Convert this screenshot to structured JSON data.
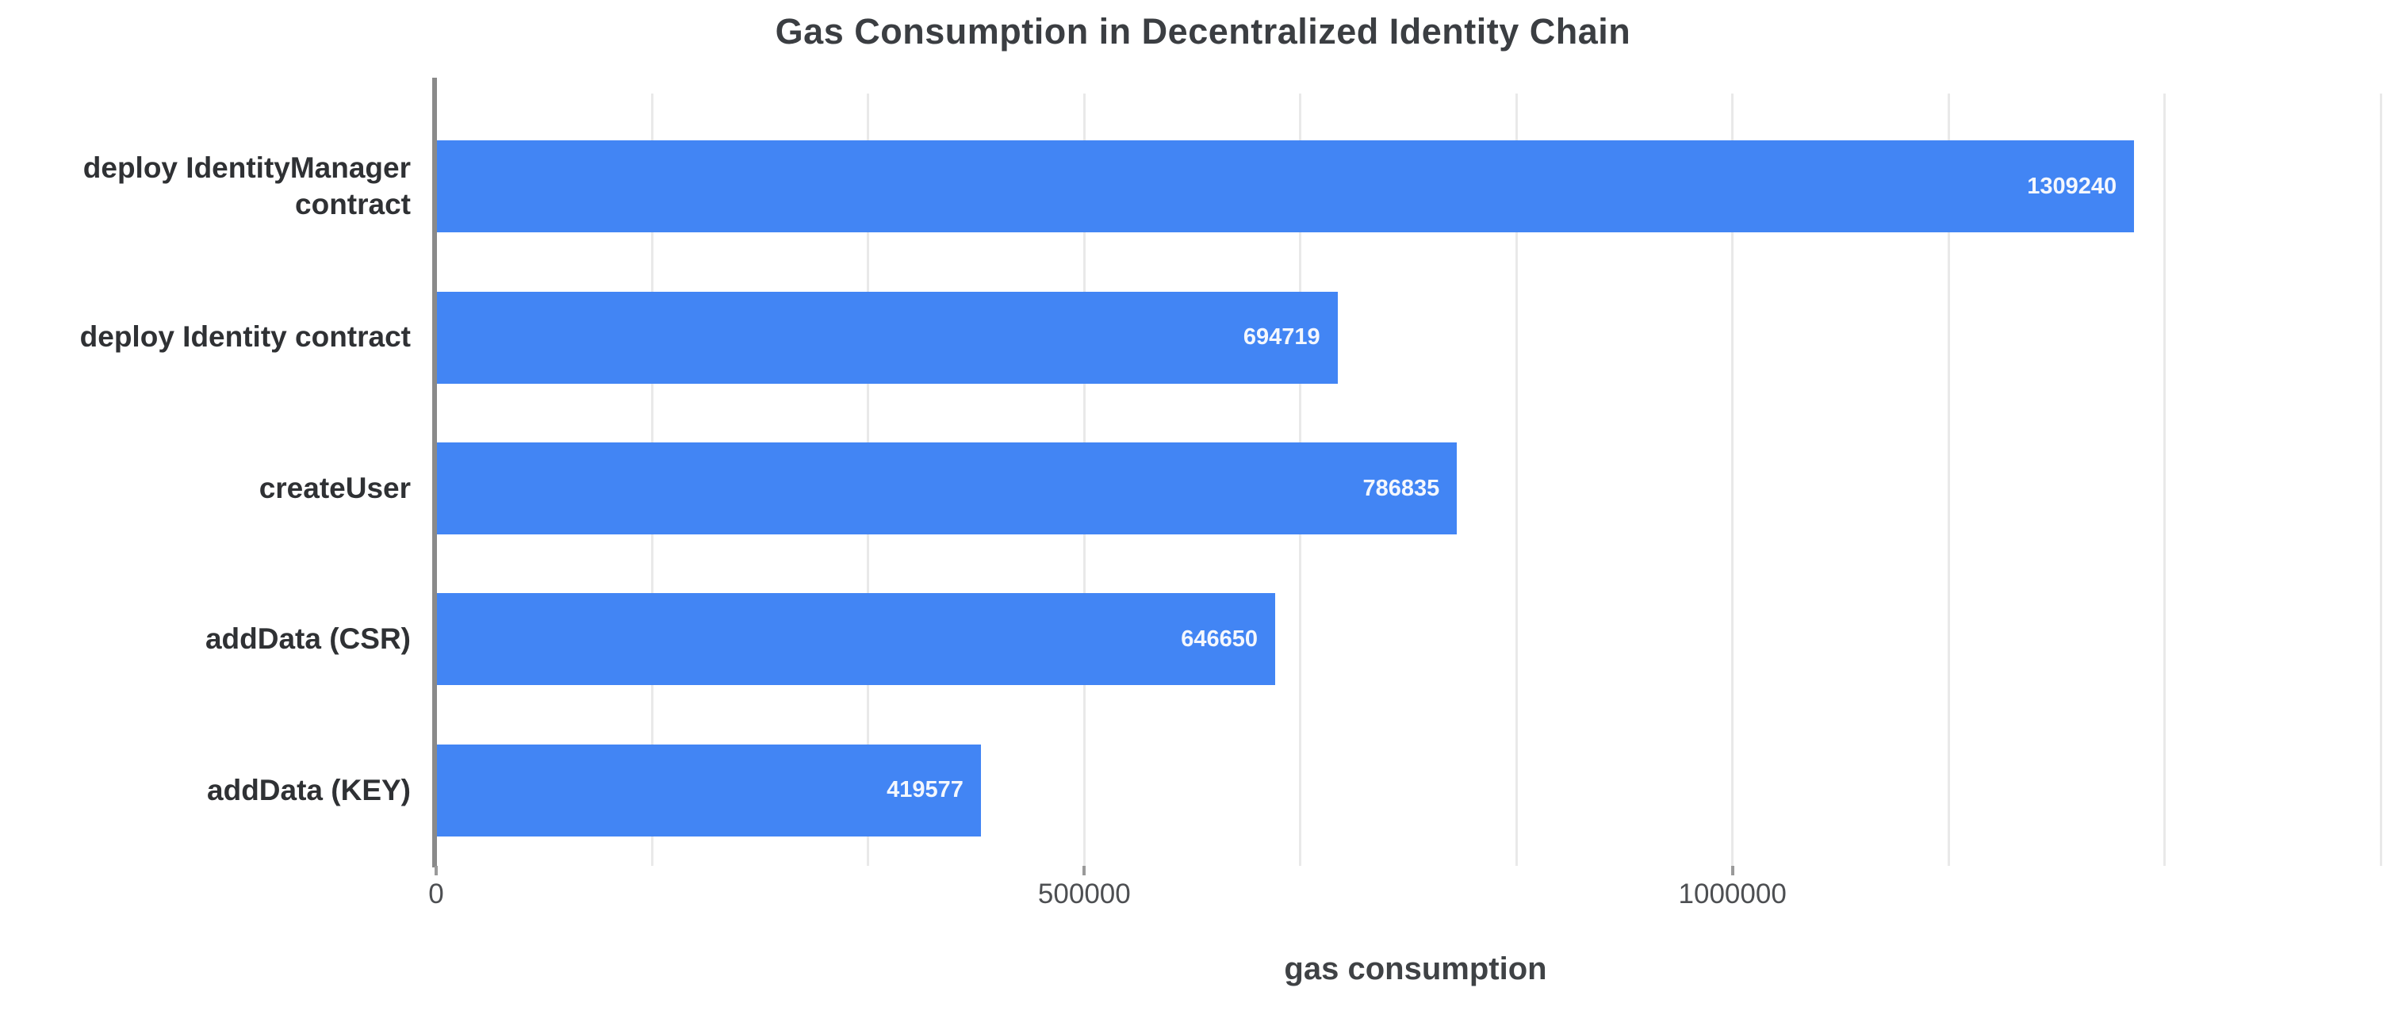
{
  "page": {
    "background_color": "#ffffff"
  },
  "chart_data": {
    "type": "bar",
    "orientation": "horizontal",
    "title": "Gas Consumption in Decentralized Identity Chain",
    "xlabel": "gas consumption",
    "ylabel": "",
    "categories": [
      "deploy IdentityManager contract",
      "deploy Identity contract",
      "createUser",
      "addData (CSR)",
      "addData (KEY)"
    ],
    "values": [
      1309240,
      694719,
      786835,
      646650,
      419577
    ],
    "bar_labels": [
      "1309240",
      "694719",
      "786835",
      "646650",
      "419577"
    ],
    "xlim": [
      0,
      1511000
    ],
    "x_ticks": [
      {
        "value": 0,
        "label": "0"
      },
      {
        "value": 500000,
        "label": "500000"
      },
      {
        "value": 1000000,
        "label": "1000000"
      }
    ],
    "gridline_step": 166666.67,
    "grid": true,
    "legend_position": "none",
    "bar_color": "#4285f4",
    "bar_label_color": "#f4f7fd",
    "axis_line_color": "#8a8a8a",
    "gridline_color": "#e9e9e9",
    "title_color": "#3b3e42",
    "category_label_color": "#2f3134",
    "tick_label_color": "#4d4f52",
    "xlabel_color": "#3f4245"
  }
}
